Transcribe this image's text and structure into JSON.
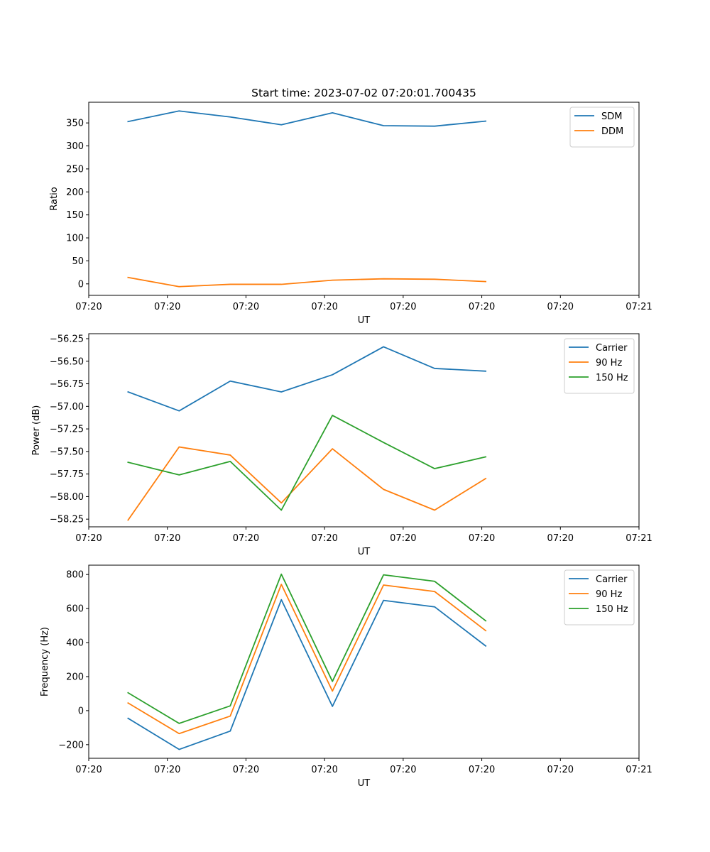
{
  "figure": {
    "title": "Start time: 2023-07-02 07:20:01.700435"
  },
  "chart_data": [
    {
      "type": "line",
      "title": "Start time: 2023-07-02 07:20:01.700435",
      "xlabel": "UT",
      "ylabel": "Ratio",
      "x_tick_labels": [
        "07:20",
        "07:20",
        "07:20",
        "07:20",
        "07:20",
        "07:20",
        "07:20",
        "07:21"
      ],
      "xlim": [
        0,
        7
      ],
      "ylim": [
        -25,
        395
      ],
      "y_ticks": [
        0,
        50,
        100,
        150,
        200,
        250,
        300,
        350
      ],
      "y_tick_labels": [
        "0",
        "50",
        "100",
        "150",
        "200",
        "250",
        "300",
        "350"
      ],
      "legend_loc": "top-right",
      "x": [
        0.5,
        1.15,
        1.8,
        2.45,
        3.1,
        3.75,
        4.4,
        5.05
      ],
      "series": [
        {
          "name": "SDM",
          "color": "#1f77b4",
          "values": [
            353,
            376,
            363,
            346,
            372,
            344,
            343,
            354
          ]
        },
        {
          "name": "DDM",
          "color": "#ff7f0e",
          "values": [
            14,
            -6,
            -1,
            -1,
            8,
            11,
            10,
            5
          ]
        }
      ]
    },
    {
      "type": "line",
      "title": "",
      "xlabel": "UT",
      "ylabel": "Power (dB)",
      "x_tick_labels": [
        "07:20",
        "07:20",
        "07:20",
        "07:20",
        "07:20",
        "07:20",
        "07:20",
        "07:21"
      ],
      "xlim": [
        0,
        7
      ],
      "ylim": [
        -58.335,
        -56.195
      ],
      "y_ticks": [
        -58.25,
        -58.0,
        -57.75,
        -57.5,
        -57.25,
        -57.0,
        -56.75,
        -56.5,
        -56.25
      ],
      "y_tick_labels": [
        "−58.25",
        "−58.00",
        "−57.75",
        "−57.50",
        "−57.25",
        "−57.00",
        "−56.75",
        "−56.50",
        "−56.25"
      ],
      "legend_loc": "top-right",
      "x": [
        0.5,
        1.15,
        1.8,
        2.45,
        3.1,
        3.75,
        4.4,
        5.05
      ],
      "series": [
        {
          "name": "Carrier",
          "color": "#1f77b4",
          "values": [
            -56.84,
            -57.05,
            -56.72,
            -56.84,
            -56.65,
            -56.34,
            -56.58,
            -56.61
          ]
        },
        {
          "name": "90 Hz",
          "color": "#ff7f0e",
          "values": [
            -58.26,
            -57.45,
            -57.54,
            -58.07,
            -57.47,
            -57.92,
            -58.15,
            -57.8
          ]
        },
        {
          "name": "150 Hz",
          "color": "#2ca02c",
          "values": [
            -57.62,
            -57.76,
            -57.61,
            -58.15,
            -57.1,
            -57.4,
            -57.69,
            -57.56
          ]
        }
      ]
    },
    {
      "type": "line",
      "title": "",
      "xlabel": "UT",
      "ylabel": "Frequency (Hz)",
      "x_tick_labels": [
        "07:20",
        "07:20",
        "07:20",
        "07:20",
        "07:20",
        "07:20",
        "07:20",
        "07:21"
      ],
      "xlim": [
        0,
        7
      ],
      "ylim": [
        -280,
        855
      ],
      "y_ticks": [
        -200,
        0,
        200,
        400,
        600,
        800
      ],
      "y_tick_labels": [
        "−200",
        "0",
        "200",
        "400",
        "600",
        "800"
      ],
      "legend_loc": "top-right",
      "x": [
        0.5,
        1.15,
        1.8,
        2.45,
        3.1,
        3.75,
        4.4,
        5.05
      ],
      "series": [
        {
          "name": "Carrier",
          "color": "#1f77b4",
          "values": [
            -45,
            -228,
            -120,
            652,
            25,
            648,
            610,
            380
          ]
        },
        {
          "name": "90 Hz",
          "color": "#ff7f0e",
          "values": [
            45,
            -135,
            -32,
            742,
            115,
            738,
            700,
            470
          ]
        },
        {
          "name": "150 Hz",
          "color": "#2ca02c",
          "values": [
            105,
            -75,
            28,
            802,
            172,
            798,
            760,
            528
          ]
        }
      ]
    }
  ]
}
